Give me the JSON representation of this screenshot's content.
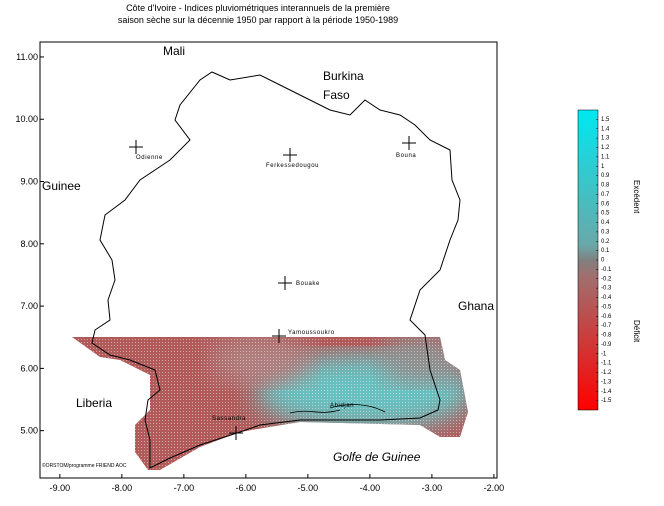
{
  "title": [
    "Côte d'Ivoire - Indices pluviométriques interannuels de la première",
    "saison sèche sur la décennie 1950 par rapport à la période 1950-1989"
  ],
  "map": {
    "xlim": [
      -9.32,
      -1.95
    ],
    "ylim": [
      4.24,
      11.24
    ],
    "xticks": [
      {
        "value": -9,
        "label": "-9.00"
      },
      {
        "value": -8,
        "label": "-8.00"
      },
      {
        "value": -7,
        "label": "-7.00"
      },
      {
        "value": -6,
        "label": "-6.00"
      },
      {
        "value": -5,
        "label": "-5.00"
      },
      {
        "value": -4,
        "label": "-4.00"
      },
      {
        "value": -3,
        "label": "-3.00"
      },
      {
        "value": -2,
        "label": "-2.00"
      }
    ],
    "yticks": [
      {
        "value": 5,
        "label": "5.00"
      },
      {
        "value": 6,
        "label": "6.00"
      },
      {
        "value": 7,
        "label": "7.00"
      },
      {
        "value": 8,
        "label": "8.00"
      },
      {
        "value": 9,
        "label": "9.00"
      },
      {
        "value": 10,
        "label": "10.00"
      },
      {
        "value": 11,
        "label": "11.00"
      }
    ]
  },
  "countries": {
    "mali": "Mali",
    "burkina": [
      "Burkina",
      "Faso"
    ],
    "guinee": "Guinee",
    "ghana": "Ghana",
    "liberia": "Liberia",
    "golfe": "Golfe de Guinee"
  },
  "cities": {
    "odienne": "Odienne",
    "ferke": "Ferkessedougou",
    "bouna": "Bouna",
    "bouake": "Bouake",
    "yamoussoukro": "Yamoussoukro",
    "sassandra": "Sassandra",
    "abidjan": "Abidjan"
  },
  "credit": "©ORSTOM/programme FRIEND AOC",
  "legend": {
    "clim": [
      -1.6,
      1.6
    ],
    "labels": [
      "Excédent",
      "Déficit"
    ],
    "ticks": [
      1.5,
      1.4,
      1.3,
      1.2,
      1.1,
      1,
      0.9,
      0.8,
      0.7,
      0.6,
      0.5,
      0.4,
      0.3,
      0.2,
      0.1,
      0,
      -0.1,
      -0.2,
      -0.3,
      -0.4,
      -0.5,
      -0.6,
      -0.7,
      -0.8,
      -0.9,
      -1,
      -1.1,
      -1.2,
      -1.3,
      -1.4,
      -1.5
    ]
  }
}
